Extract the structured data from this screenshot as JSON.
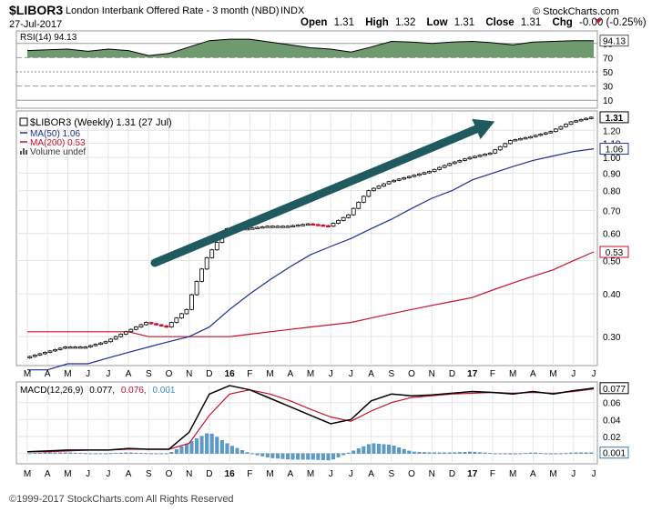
{
  "header": {
    "symbol": "$LIBOR3",
    "name": "London Interbank Offered Rate - 3 month (NBD)",
    "exchange": "INDX",
    "date": "27-Jul-2017",
    "branding": "© StockCharts.com",
    "open_label": "Open",
    "open_value": "1.31",
    "high_label": "High",
    "high_value": "1.32",
    "low_label": "Low",
    "low_value": "1.31",
    "close_label": "Close",
    "close_value": "1.31",
    "chg_label": "Chg",
    "chg_value": "-0.00 (-0.25%)"
  },
  "footer": "©1999-2017 StockCharts.com All Rights Reserved",
  "rsi": {
    "legend": "RSI(14) 94.13",
    "value_badge": "94.13",
    "ticks": [
      "90",
      "70",
      "50",
      "30",
      "10"
    ]
  },
  "price": {
    "legend_main": "$LIBOR3 (Weekly) 1.31 (27 Jul)",
    "legend_ma50": "MA(50) 1.06",
    "legend_ma200": "MA(200) 0.53",
    "legend_volume": "Volume undef",
    "badge_close": "1.31",
    "badge_ma50": "1.06",
    "badge_ma200": "0.53",
    "ticks": [
      "1.20",
      "1.10",
      "1.00",
      "0.90",
      "0.80",
      "0.70",
      "0.60",
      "0.50",
      "0.40",
      "0.30"
    ]
  },
  "macd": {
    "legend_prefix": "MACD(12,26,9)",
    "legend_macd": "0.077,",
    "legend_signal": "0.076,",
    "legend_hist": "0.001",
    "badge_macd": "0.077",
    "badge_hist": "0.001",
    "ticks": [
      "0.06",
      "0.04",
      "0.02",
      "0.00"
    ]
  },
  "x_axis_labels": [
    "M",
    "A",
    "M",
    "J",
    "J",
    "A",
    "S",
    "O",
    "N",
    "D",
    "16",
    "F",
    "M",
    "A",
    "M",
    "J",
    "J",
    "A",
    "S",
    "O",
    "N",
    "D",
    "17",
    "F",
    "M",
    "A",
    "M",
    "J",
    "J"
  ],
  "colors": {
    "rsi_fill": "#6f9a6f",
    "ma50": "#1f2d96",
    "ma200": "#c8102e",
    "arrow": "#1e5a5e",
    "down_candle": "#c8102e",
    "histogram": "#5b9bc8",
    "chg_negative": "#c8102e",
    "panel_border": "#999999",
    "grid": "#e4e4e4"
  },
  "chart_data": [
    {
      "type": "area",
      "title": "RSI(14) 94.13",
      "ylim": [
        0,
        100
      ],
      "reference_lines": [
        90,
        70,
        50,
        30,
        10
      ],
      "x": [
        "2015-03",
        "2015-04",
        "2015-05",
        "2015-06",
        "2015-07",
        "2015-08",
        "2015-09",
        "2015-10",
        "2015-11",
        "2015-12",
        "2016-01",
        "2016-02",
        "2016-03",
        "2016-04",
        "2016-05",
        "2016-06",
        "2016-07",
        "2016-08",
        "2016-09",
        "2016-10",
        "2016-11",
        "2016-12",
        "2017-01",
        "2017-02",
        "2017-03",
        "2017-04",
        "2017-05",
        "2017-06",
        "2017-07"
      ],
      "values": [
        80,
        81,
        82,
        79,
        82,
        80,
        73,
        76,
        85,
        94,
        96,
        96,
        92,
        88,
        84,
        82,
        78,
        85,
        93,
        92,
        90,
        92,
        93,
        91,
        88,
        92,
        93,
        94,
        94
      ]
    },
    {
      "type": "line",
      "title": "$LIBOR3 (Weekly) 1.31 (27 Jul)",
      "log_scale": true,
      "ylim": [
        0.25,
        1.35
      ],
      "x": [
        "2015-03",
        "2015-04",
        "2015-05",
        "2015-06",
        "2015-07",
        "2015-08",
        "2015-09",
        "2015-10",
        "2015-11",
        "2015-12",
        "2016-01",
        "2016-02",
        "2016-03",
        "2016-04",
        "2016-05",
        "2016-06",
        "2016-07",
        "2016-08",
        "2016-09",
        "2016-10",
        "2016-11",
        "2016-12",
        "2017-01",
        "2017-02",
        "2017-03",
        "2017-04",
        "2017-05",
        "2017-06",
        "2017-07"
      ],
      "series": [
        {
          "name": "$LIBOR3",
          "values": [
            0.26,
            0.27,
            0.28,
            0.28,
            0.29,
            0.31,
            0.33,
            0.32,
            0.36,
            0.51,
            0.62,
            0.62,
            0.63,
            0.63,
            0.64,
            0.63,
            0.68,
            0.8,
            0.85,
            0.88,
            0.91,
            0.96,
            1.0,
            1.03,
            1.12,
            1.15,
            1.19,
            1.27,
            1.31
          ]
        },
        {
          "name": "MA(50)",
          "values": [
            0.24,
            0.24,
            0.25,
            0.25,
            0.26,
            0.27,
            0.28,
            0.29,
            0.3,
            0.32,
            0.36,
            0.4,
            0.44,
            0.48,
            0.52,
            0.55,
            0.58,
            0.62,
            0.66,
            0.71,
            0.76,
            0.8,
            0.86,
            0.9,
            0.94,
            0.98,
            1.01,
            1.04,
            1.06
          ]
        },
        {
          "name": "MA(200)",
          "values": [
            0.31,
            0.31,
            0.31,
            0.31,
            0.31,
            0.31,
            0.3,
            0.3,
            0.3,
            0.3,
            0.3,
            0.305,
            0.31,
            0.315,
            0.32,
            0.325,
            0.33,
            0.34,
            0.35,
            0.36,
            0.37,
            0.38,
            0.39,
            0.41,
            0.43,
            0.45,
            0.47,
            0.5,
            0.53
          ]
        }
      ]
    },
    {
      "type": "line",
      "title": "MACD(12,26,9) 0.077, 0.076, 0.001",
      "ylim": [
        -0.01,
        0.08
      ],
      "x": [
        "2015-03",
        "2015-04",
        "2015-05",
        "2015-06",
        "2015-07",
        "2015-08",
        "2015-09",
        "2015-10",
        "2015-11",
        "2015-12",
        "2016-01",
        "2016-02",
        "2016-03",
        "2016-04",
        "2016-05",
        "2016-06",
        "2016-07",
        "2016-08",
        "2016-09",
        "2016-10",
        "2016-11",
        "2016-12",
        "2017-01",
        "2017-02",
        "2017-03",
        "2017-04",
        "2017-05",
        "2017-06",
        "2017-07"
      ],
      "series": [
        {
          "name": "MACD",
          "values": [
            0.002,
            0.003,
            0.004,
            0.004,
            0.004,
            0.006,
            0.005,
            0.005,
            0.025,
            0.07,
            0.08,
            0.075,
            0.065,
            0.055,
            0.045,
            0.035,
            0.04,
            0.062,
            0.07,
            0.068,
            0.069,
            0.071,
            0.073,
            0.072,
            0.07,
            0.073,
            0.07,
            0.074,
            0.077
          ]
        },
        {
          "name": "Signal",
          "values": [
            0.002,
            0.002,
            0.003,
            0.004,
            0.004,
            0.005,
            0.005,
            0.005,
            0.012,
            0.045,
            0.07,
            0.075,
            0.07,
            0.062,
            0.052,
            0.043,
            0.038,
            0.05,
            0.06,
            0.066,
            0.068,
            0.07,
            0.071,
            0.072,
            0.071,
            0.072,
            0.071,
            0.073,
            0.076
          ]
        },
        {
          "name": "Histogram",
          "values": [
            0.0,
            0.001,
            0.001,
            0.0,
            0.0,
            0.001,
            0.0,
            0.0,
            0.013,
            0.025,
            0.01,
            0.0,
            -0.005,
            -0.007,
            -0.007,
            -0.008,
            0.002,
            0.012,
            0.01,
            0.002,
            0.001,
            0.001,
            0.002,
            0.0,
            -0.001,
            0.001,
            -0.001,
            0.001,
            0.001
          ]
        }
      ]
    }
  ]
}
